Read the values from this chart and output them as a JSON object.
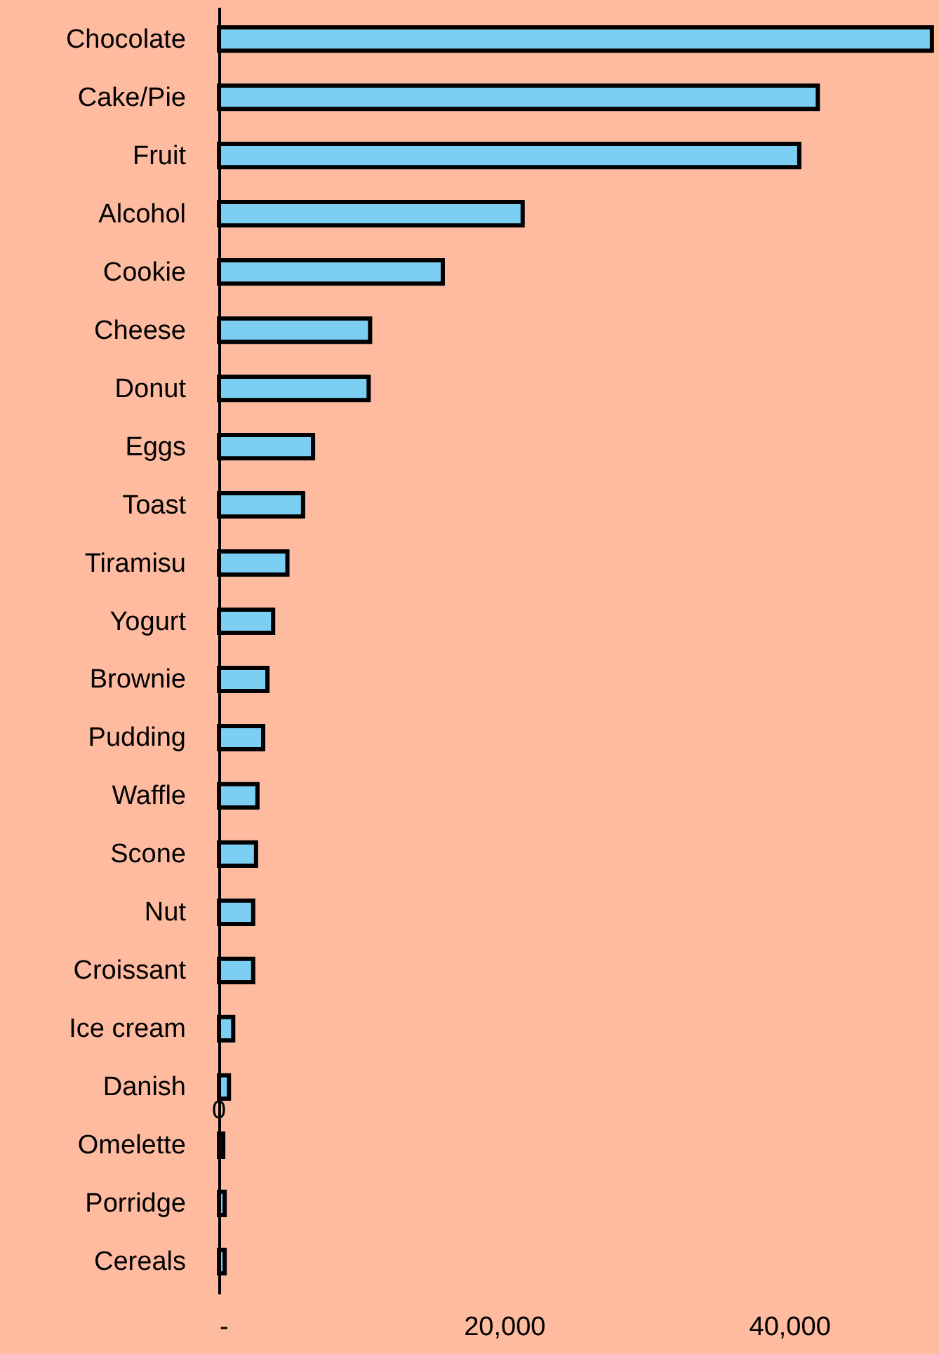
{
  "chart_data": {
    "type": "bar",
    "orientation": "horizontal",
    "categories": [
      "Chocolate",
      "Cake/Pie",
      "Fruit",
      "Alcohol",
      "Cookie",
      "Cheese",
      "Donut",
      "Eggs",
      "Toast",
      "Tiramisu",
      "Yogurt",
      "Brownie",
      "Pudding",
      "Waffle",
      "Scone",
      "Nut",
      "Croissant",
      "Ice cream",
      "Danish",
      "Omelette",
      "Porridge",
      "Cereals"
    ],
    "values": [
      50000,
      42000,
      40700,
      21300,
      15700,
      10600,
      10500,
      6600,
      5900,
      4800,
      3800,
      3400,
      3100,
      2700,
      2600,
      2400,
      2400,
      1000,
      700,
      300,
      400,
      400
    ],
    "annotations": [
      {
        "text": "0",
        "x": 0,
        "y": "Omelette"
      }
    ],
    "color": "#7ccff2",
    "xlim": [
      0,
      50500
    ],
    "xticks": [
      {
        "value": 0,
        "label": "-"
      },
      {
        "value": 20000,
        "label": "20,000"
      },
      {
        "value": 40000,
        "label": "40,000"
      }
    ],
    "grid": false
  }
}
